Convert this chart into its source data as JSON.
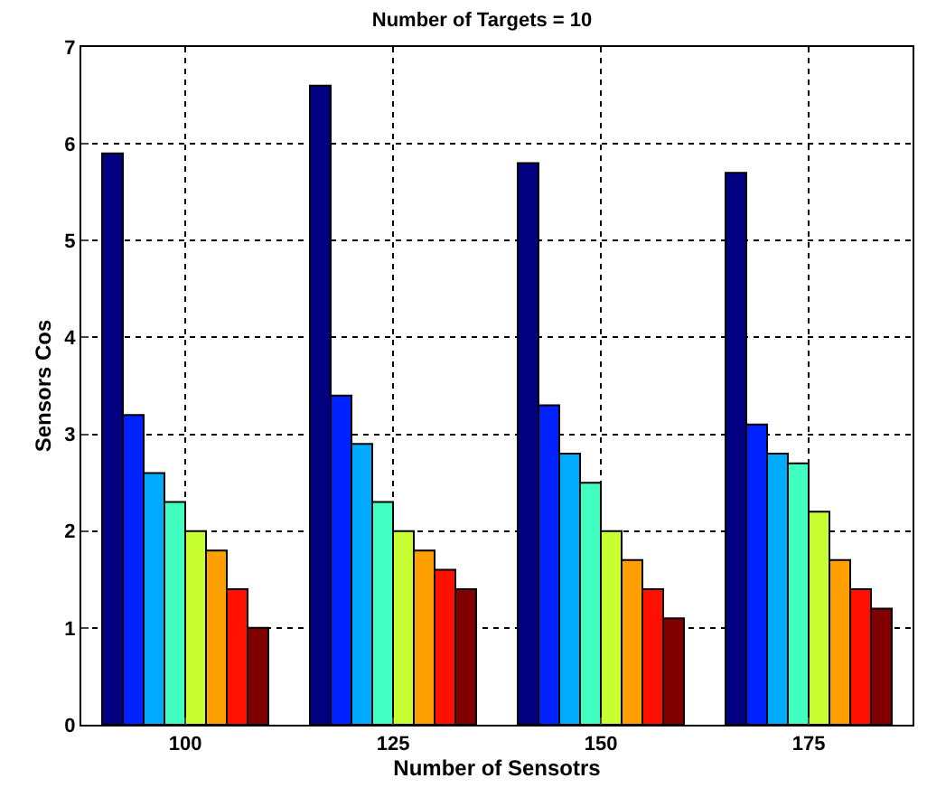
{
  "chart_data": {
    "type": "bar",
    "title": "Number of Targets = 10",
    "xlabel": "Number of Sensotrs",
    "ylabel": "Sensors Cos",
    "categories": [
      "100",
      "125",
      "150",
      "175"
    ],
    "series": [
      {
        "color": "#000080",
        "values": [
          5.9,
          6.6,
          5.8,
          5.7
        ]
      },
      {
        "color": "#0022ff",
        "values": [
          3.2,
          3.4,
          3.3,
          3.1
        ]
      },
      {
        "color": "#00aaff",
        "values": [
          2.6,
          2.9,
          2.8,
          2.8
        ]
      },
      {
        "color": "#40ffc0",
        "values": [
          2.3,
          2.3,
          2.5,
          2.7
        ]
      },
      {
        "color": "#c8ff30",
        "values": [
          2.0,
          2.0,
          2.0,
          2.2
        ]
      },
      {
        "color": "#ffa000",
        "values": [
          1.8,
          1.8,
          1.7,
          1.7
        ]
      },
      {
        "color": "#ff1000",
        "values": [
          1.4,
          1.6,
          1.4,
          1.4
        ]
      },
      {
        "color": "#800000",
        "values": [
          1.0,
          1.4,
          1.1,
          1.2
        ]
      }
    ],
    "ylim": [
      0,
      7
    ],
    "yticks": [
      0,
      1,
      2,
      3,
      4,
      5,
      6,
      7
    ],
    "grid": true
  }
}
